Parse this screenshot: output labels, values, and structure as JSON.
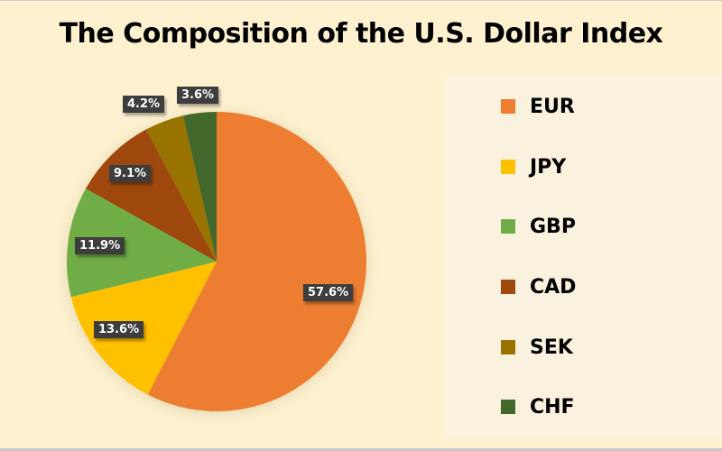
{
  "title": "The Composition of the U.S. Dollar Index",
  "chart_data": {
    "type": "pie",
    "title": "The Composition of the U.S. Dollar Index",
    "categories": [
      "EUR",
      "JPY",
      "GBP",
      "CAD",
      "SEK",
      "CHF"
    ],
    "values": [
      57.6,
      13.6,
      11.9,
      9.1,
      4.2,
      3.6
    ],
    "labels": [
      "57.6%",
      "13.6%",
      "11.9%",
      "9.1%",
      "4.2%",
      "3.6%"
    ],
    "colors": [
      "#ed7d31",
      "#ffc000",
      "#70ad47",
      "#9e480e",
      "#997300",
      "#43682b"
    ],
    "legend_position": "right",
    "start_angle": "12 o'clock, clockwise"
  },
  "legend": {
    "items": [
      {
        "label": "EUR",
        "color": "#ed7d31"
      },
      {
        "label": "JPY",
        "color": "#ffc000"
      },
      {
        "label": "GBP",
        "color": "#70ad47"
      },
      {
        "label": "CAD",
        "color": "#9e480e"
      },
      {
        "label": "SEK",
        "color": "#997300"
      },
      {
        "label": "CHF",
        "color": "#43682b"
      }
    ]
  },
  "data_labels": {
    "eur": "57.6%",
    "jpy": "13.6%",
    "gbp": "11.9%",
    "cad": "9.1%",
    "sek": "4.2%",
    "chf": "3.6%"
  }
}
